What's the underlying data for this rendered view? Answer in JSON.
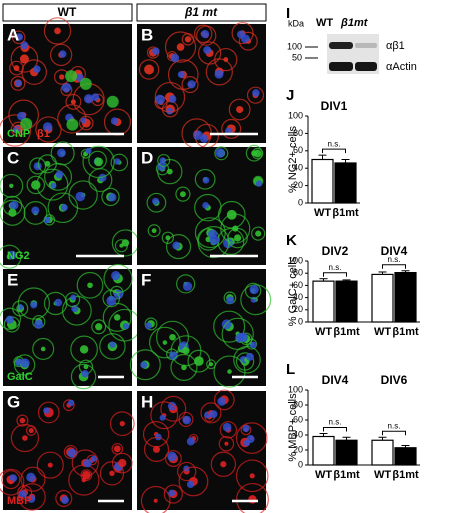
{
  "header": {
    "columns": [
      "WT",
      "β1 mt"
    ]
  },
  "images": [
    {
      "letter": "A",
      "stain": "CNP",
      "stain2": "β1"
    },
    {
      "letter": "B"
    },
    {
      "letter": "C",
      "stain": "NG2"
    },
    {
      "letter": "D"
    },
    {
      "letter": "E",
      "stain": "GalC"
    },
    {
      "letter": "F"
    },
    {
      "letter": "G",
      "stain": "MBP"
    },
    {
      "letter": "H"
    }
  ],
  "blot": {
    "letter": "I",
    "unit": "kDa",
    "lanes": [
      "WT",
      "β1mt"
    ],
    "markers": [
      100,
      50
    ],
    "bands": [
      "αβ1",
      "αActin"
    ]
  },
  "charts": [
    {
      "type": "bar",
      "letter": "J",
      "ylabel": "% NG2+ cells",
      "groups": [
        "DIV1"
      ],
      "significance": [
        "n.s."
      ],
      "ylim": [
        0,
        100
      ],
      "yticks": [
        0,
        20,
        40,
        60,
        80,
        100
      ],
      "series": [
        {
          "name": "WT",
          "color": "#ffffff",
          "values": [
            50
          ],
          "errors": [
            5
          ]
        },
        {
          "name": "β1mt",
          "color": "#000000",
          "values": [
            46
          ],
          "errors": [
            4
          ]
        }
      ]
    },
    {
      "type": "bar",
      "letter": "K",
      "ylabel": "% GalC+ cells",
      "groups": [
        "DIV2",
        "DIV4"
      ],
      "significance": [
        "n.s.",
        "n.s."
      ],
      "ylim": [
        0,
        100
      ],
      "yticks": [
        0,
        20,
        40,
        60,
        80,
        100
      ],
      "series": [
        {
          "name": "WT",
          "color": "#ffffff",
          "values": [
            67,
            78
          ],
          "errors": [
            4,
            4
          ]
        },
        {
          "name": "β1mt",
          "color": "#000000",
          "values": [
            67,
            81
          ],
          "errors": [
            2,
            3
          ]
        }
      ]
    },
    {
      "type": "bar",
      "letter": "L",
      "ylabel": "% MBP+ cells",
      "groups": [
        "DIV4",
        "DIV6"
      ],
      "significance": [
        "n.s.",
        "n.s."
      ],
      "ylim": [
        0,
        100
      ],
      "yticks": [
        0,
        20,
        40,
        60,
        80,
        100
      ],
      "series": [
        {
          "name": "WT",
          "color": "#ffffff",
          "values": [
            38,
            33
          ],
          "errors": [
            4,
            4
          ]
        },
        {
          "name": "β1mt",
          "color": "#000000",
          "values": [
            33,
            23
          ],
          "errors": [
            4,
            3
          ]
        }
      ]
    }
  ]
}
